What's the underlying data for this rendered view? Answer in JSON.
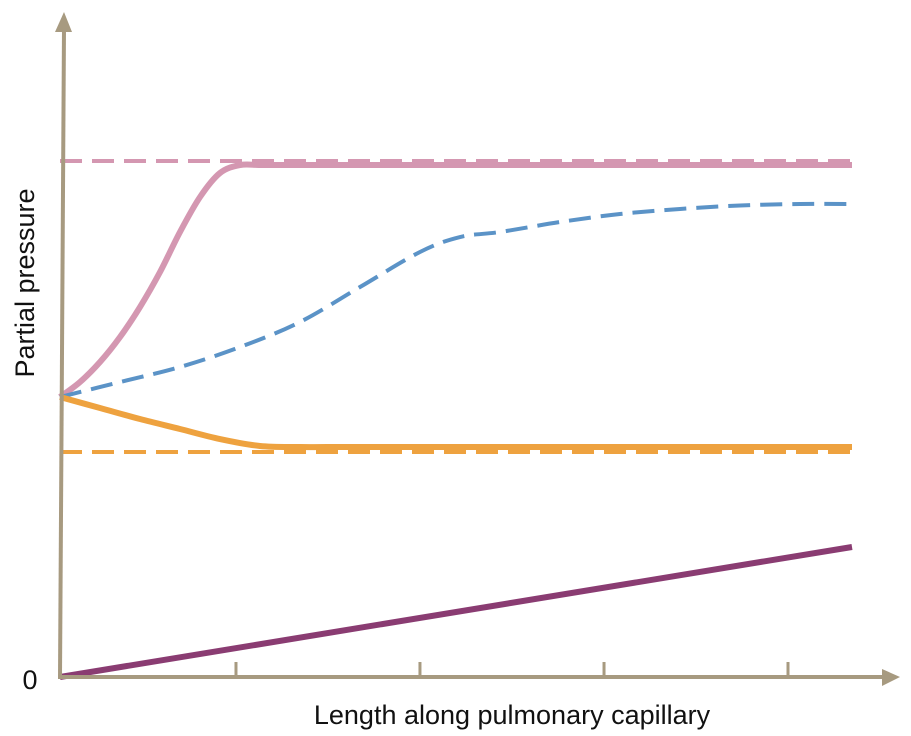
{
  "chart_data": {
    "type": "line",
    "xlabel": "Length along pulmonary capillary",
    "ylabel": "Partial pressure",
    "y_origin_label": "0",
    "xlim": [
      0,
      1
    ],
    "ylim": [
      0,
      1
    ],
    "grid": false,
    "legend": "none",
    "axis_color": "#a79a80",
    "x_ticks": [
      0.2222,
      0.4545,
      0.6869,
      0.9192
    ],
    "series": [
      {
        "style": "dashed",
        "color": "#d497b1",
        "x": [
          0.0,
          1.0
        ],
        "y": [
          0.9053,
          0.9053
        ]
      },
      {
        "style": "solid",
        "color": "#d497b1",
        "x": [
          0.0,
          0.0253,
          0.0505,
          0.0758,
          0.101,
          0.1263,
          0.1515,
          0.1768,
          0.202,
          0.2273,
          0.2525,
          0.2778,
          0.303,
          0.4,
          0.5,
          0.6,
          0.7,
          0.8,
          0.9,
          1.0
        ],
        "y": [
          0.4912,
          0.5175,
          0.5526,
          0.5965,
          0.6491,
          0.7105,
          0.7807,
          0.8421,
          0.8842,
          0.8982,
          0.8982,
          0.8982,
          0.8982,
          0.8982,
          0.8982,
          0.8982,
          0.8982,
          0.8982,
          0.8982,
          0.8982
        ]
      },
      {
        "style": "dashed",
        "color": "#5b93c7",
        "x": [
          0.0,
          0.0758,
          0.1515,
          0.2273,
          0.303,
          0.3788,
          0.4545,
          0.5051,
          0.5556,
          0.6313,
          0.7071,
          0.7828,
          0.8586,
          0.9343,
          1.0
        ],
        "y": [
          0.4912,
          0.5175,
          0.5439,
          0.5789,
          0.6228,
          0.6842,
          0.7456,
          0.7719,
          0.7807,
          0.7982,
          0.8123,
          0.8211,
          0.8272,
          0.8298,
          0.8298
        ]
      },
      {
        "style": "dashed",
        "color": "#eea23f",
        "x": [
          0.0,
          1.0
        ],
        "y": [
          0.3947,
          0.3947
        ]
      },
      {
        "style": "solid",
        "color": "#eea23f",
        "x": [
          0.0,
          0.0505,
          0.101,
          0.1515,
          0.202,
          0.2525,
          0.303,
          0.3535,
          0.4,
          0.5,
          0.6,
          0.7,
          0.8,
          0.9,
          1.0
        ],
        "y": [
          0.4912,
          0.4719,
          0.4526,
          0.4351,
          0.4175,
          0.4053,
          0.4035,
          0.4035,
          0.4035,
          0.4035,
          0.4035,
          0.4035,
          0.4035,
          0.4035,
          0.4035
        ]
      },
      {
        "style": "solid",
        "color": "#8a3c72",
        "x": [
          0.0,
          1.0
        ],
        "y": [
          0.0,
          0.2281
        ]
      }
    ]
  }
}
